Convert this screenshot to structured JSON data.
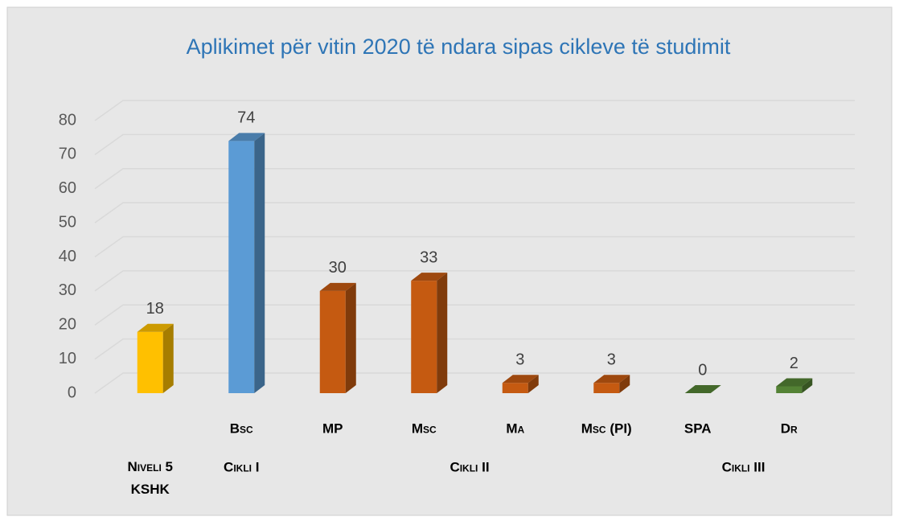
{
  "chart_data": {
    "type": "bar3d",
    "title": "Aplikimet për vitin 2020 të ndara sipas cikleve të studimit",
    "categories": [
      null,
      "Bsc",
      "MP",
      "Msc",
      "Ma",
      "Msc (PI)",
      "SPA",
      "Dr"
    ],
    "groups": [
      {
        "label": "Niveli 5 KSHK",
        "start": 0,
        "end": 0
      },
      {
        "label": "Cikli I",
        "start": 1,
        "end": 1
      },
      {
        "label": "Cikli II",
        "start": 2,
        "end": 5
      },
      {
        "label": "Cikli III",
        "start": 6,
        "end": 7
      }
    ],
    "values": [
      18,
      74,
      30,
      33,
      3,
      3,
      0,
      2
    ],
    "colors": [
      "#ffc000",
      "#5b9bd5",
      "#c55a11",
      "#c55a11",
      "#c55a11",
      "#c55a11",
      "#548235",
      "#548235"
    ],
    "ylim": [
      0,
      80
    ],
    "yticks": [
      0,
      10,
      20,
      30,
      40,
      50,
      60,
      70,
      80
    ],
    "grid": true
  }
}
